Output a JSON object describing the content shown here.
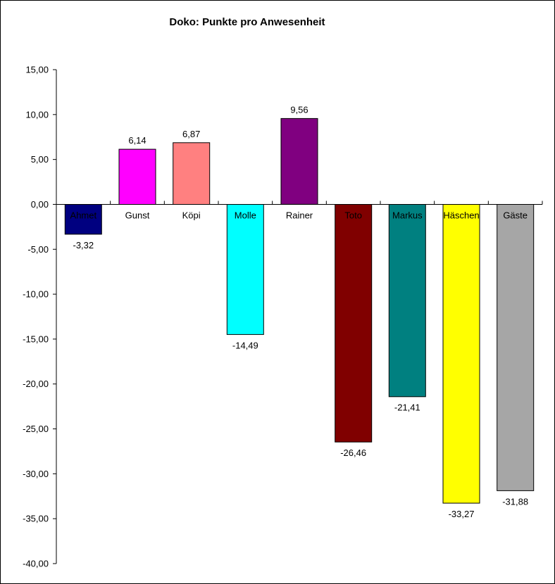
{
  "chart_data": {
    "type": "bar",
    "title": "Doko: Punkte pro Anwesenheit",
    "categories": [
      "Ahmet",
      "Gunst",
      "Köpi",
      "Molle",
      "Rainer",
      "Toto",
      "Markus",
      "Häschen",
      "Gäste"
    ],
    "values": [
      -3.32,
      6.14,
      6.87,
      -14.49,
      9.56,
      -26.46,
      -21.41,
      -33.27,
      -31.88
    ],
    "value_labels": [
      "-3,32",
      "6,14",
      "6,87",
      "-14,49",
      "9,56",
      "-26,46",
      "-21,41",
      "-33,27",
      "-31,88"
    ],
    "colors": [
      "#000080",
      "#ff00ff",
      "#ff8080",
      "#00ffff",
      "#800080",
      "#800000",
      "#008080",
      "#ffff00",
      "#a6a6a6"
    ],
    "ylim": [
      -40,
      15
    ],
    "ytick_labels": [
      "15,00",
      "10,00",
      "5,00",
      "0,00",
      "-5,00",
      "-10,00",
      "-15,00",
      "-20,00",
      "-25,00",
      "-30,00",
      "-35,00",
      "-40,00"
    ],
    "xlabel": "",
    "ylabel": "",
    "grid": false
  }
}
